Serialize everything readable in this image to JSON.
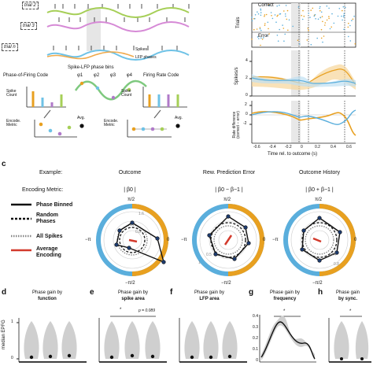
{
  "panel_a": {
    "trial_labels": [
      "trial 2",
      "trial 3",
      "trial n"
    ],
    "spikes_label": "Spikes",
    "lfp_label": "LFP phases",
    "phase_of_firing_title": "Phase-of-Firing Code",
    "spike_lfp_bins_title": "Spike-LFP phase bins",
    "firing_rate_title": "Firing Rate Code",
    "spike_count_label": "Spike\nCount",
    "encode_metric_label": "Encode.\nMetric",
    "avg_label": "Avg.",
    "phase_symbols": [
      "φ1",
      "φ2",
      "φ3",
      "φ4"
    ]
  },
  "panel_b": {
    "correct_label": "Correct",
    "error_label": "Error",
    "trials_ylabel": "Trials",
    "spikes_ylabel": "Spikes/s",
    "rate_diff_ylabel": "Rate difference\n(correct − error)",
    "yticks_spikes": [
      "0",
      "2",
      "4"
    ],
    "yticks_rate": [
      "-2",
      "0",
      "2"
    ],
    "xticks": [
      "-0.6",
      "-0.4",
      "-0.2",
      "0",
      "0.2",
      "0.4",
      "0.6"
    ],
    "xlabel": "Time rel. to outcome (s)"
  },
  "panel_c": {
    "letter": "c",
    "example_label": "Example:",
    "encoding_metric_label": "Encoding Metric:",
    "columns": [
      {
        "title": "Outcome",
        "metric": "| β0 |"
      },
      {
        "title": "Rew. Prediction Error",
        "metric": "| β0 − β−1 |"
      },
      {
        "title": "Outcome History",
        "metric": "| β0 + β−1 |"
      }
    ],
    "legend": [
      {
        "label": "Phase Binned",
        "style": "solid"
      },
      {
        "label": "Random Phases",
        "style": "dashed"
      },
      {
        "label": "All Spikes",
        "style": "dotted"
      },
      {
        "label": "Average Encoding",
        "style": "red"
      }
    ],
    "polar_labels": {
      "top": "π/2",
      "bottom": "−π/2",
      "left": "−π",
      "right": "0"
    },
    "ring_ticks": [
      [
        "1.6",
        "0.8"
      ],
      [
        "0.5",
        "1"
      ],
      [
        "0.4",
        "0.8"
      ]
    ]
  },
  "panel_bottom": {
    "ylabel": "median EPFG",
    "yticks": [
      "0",
      "1"
    ],
    "items": [
      {
        "letter": "d",
        "title_pre": "Phase gain by",
        "title_bold": "function"
      },
      {
        "letter": "e",
        "title_pre": "Phase gain by",
        "title_bold": "spike area",
        "star": "*",
        "pval": "p = 0.089"
      },
      {
        "letter": "f",
        "title_pre": "Phase gain by",
        "title_bold": "LFP area"
      },
      {
        "letter": "g",
        "title_pre": "Phase gain by",
        "title_bold": "frequency",
        "star": "*",
        "yticks": [
          "0",
          "0.1",
          "0.2",
          "0.3",
          "0.4"
        ]
      },
      {
        "letter": "h",
        "title_pre": "Phase gain",
        "title_bold": "by sync.",
        "star": "*"
      }
    ]
  },
  "colors": {
    "correct": "#e8a020",
    "error": "#5aaedc",
    "dark": "#222222",
    "red": "#d33a2c",
    "grey": "#bdbdbd"
  }
}
